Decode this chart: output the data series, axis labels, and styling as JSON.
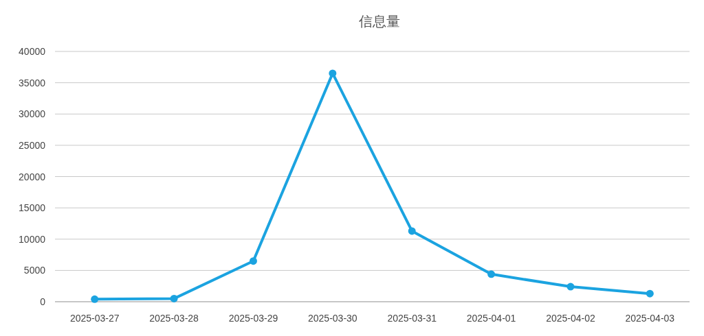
{
  "chart_data": {
    "type": "line",
    "title": "信息量",
    "categories": [
      "2025-03-27",
      "2025-03-28",
      "2025-03-29",
      "2025-03-30",
      "2025-03-31",
      "2025-04-01",
      "2025-04-02",
      "2025-04-03"
    ],
    "series": [
      {
        "color": "#1ba3e0",
        "values": [
          400,
          500,
          6500,
          36500,
          11300,
          4400,
          2400,
          1300
        ]
      }
    ],
    "ylim": [
      0,
      40000
    ],
    "yticks": [
      0,
      5000,
      10000,
      15000,
      20000,
      25000,
      30000,
      35000,
      40000
    ],
    "grid": "y",
    "marker": "circle"
  }
}
